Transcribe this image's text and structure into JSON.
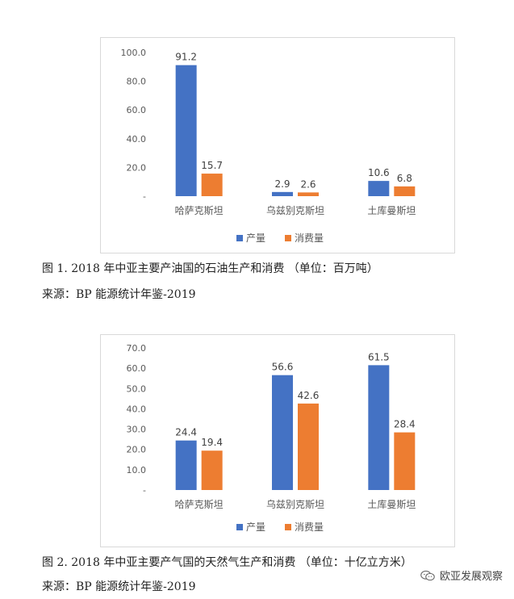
{
  "colors": {
    "production": "#4472c4",
    "consumption": "#ed7d31",
    "axis_text": "#595959",
    "grid": "#d9d9d9"
  },
  "charts": [
    {
      "caption": "图 1. 2018 年中亚主要产油国的石油生产和消费 （单位：百万吨）",
      "source": "来源：BP 能源统计年鉴-2019"
    },
    {
      "caption": "图 2. 2018 年中亚主要产气国的天然气生产和消费 （单位：十亿立方米）",
      "source": "来源：BP 能源统计年鉴-2019"
    }
  ],
  "chart_data": [
    {
      "type": "bar",
      "categories": [
        "哈萨克斯坦",
        "乌兹别克斯坦",
        "土库曼斯坦"
      ],
      "series": [
        {
          "name": "产量",
          "values": [
            91.2,
            2.9,
            10.6
          ],
          "labels": [
            "91.2",
            "2.9",
            "10.6"
          ]
        },
        {
          "name": "消费量",
          "values": [
            15.7,
            2.6,
            6.8
          ],
          "labels": [
            "15.7",
            "2.6",
            "6.8"
          ]
        }
      ],
      "ylim": [
        0,
        100
      ],
      "yticks": [
        0,
        20,
        40,
        60,
        80,
        100
      ],
      "ytick_labels": [
        "-",
        "20.0",
        "40.0",
        "60.0",
        "80.0",
        "100.0"
      ],
      "grid": false,
      "legend": "bottom"
    },
    {
      "type": "bar",
      "categories": [
        "哈萨克斯坦",
        "乌兹别克斯坦",
        "土库曼斯坦"
      ],
      "series": [
        {
          "name": "产量",
          "values": [
            24.4,
            56.6,
            61.5
          ],
          "labels": [
            "24.4",
            "56.6",
            "61.5"
          ]
        },
        {
          "name": "消费量",
          "values": [
            19.4,
            42.6,
            28.4
          ],
          "labels": [
            "19.4",
            "42.6",
            "28.4"
          ]
        }
      ],
      "ylim": [
        0,
        70
      ],
      "yticks": [
        0,
        10,
        20,
        30,
        40,
        50,
        60,
        70
      ],
      "ytick_labels": [
        "-",
        "10.0",
        "20.0",
        "30.0",
        "40.0",
        "50.0",
        "60.0",
        "70.0"
      ],
      "grid": false,
      "legend": "bottom"
    }
  ],
  "watermark": {
    "text": "欧亚发展观察",
    "icon": "wechat-icon"
  }
}
